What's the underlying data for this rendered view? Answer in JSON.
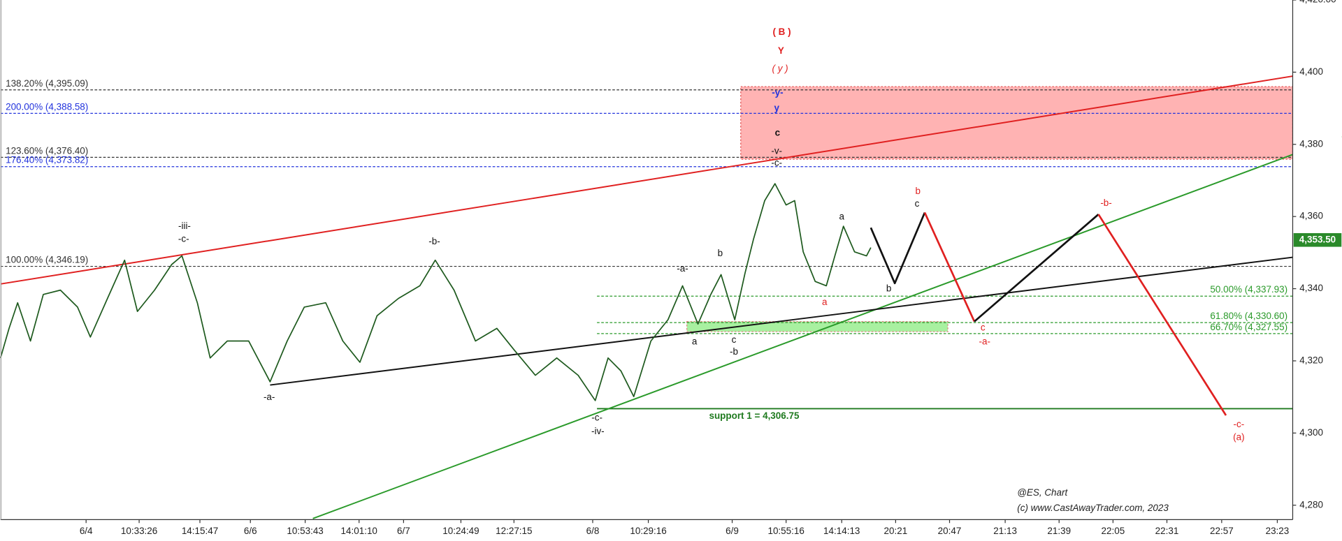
{
  "chart_data": {
    "type": "line",
    "series": [
      {
        "name": "@ES",
        "color": "#1e5a1e",
        "x": [
          0,
          10,
          20,
          35,
          50,
          70,
          90,
          105,
          125,
          145,
          160,
          180,
          200,
          212,
          230,
          245,
          265,
          290,
          315,
          335,
          355,
          380,
          400,
          420,
          440,
          465,
          490,
          508,
          530,
          555,
          580,
          600,
          625,
          650,
          675,
          695,
          710,
          725,
          740,
          760,
          780,
          797,
          815,
          830,
          842,
          858,
          870,
          880,
          893,
          905,
          918,
          928,
          938,
          952,
          965,
          975,
          985,
          998,
          1012,
          1017
        ],
        "values": [
          4320.8,
          4329.0,
          4336.1,
          4325.5,
          4338.4,
          4339.6,
          4334.9,
          4326.6,
          4337.3,
          4347.9,
          4333.7,
          4339.6,
          4346.7,
          4349.1,
          4336.1,
          4320.8,
          4325.5,
          4325.5,
          4314.2,
          4325.5,
          4334.9,
          4336.1,
          4325.5,
          4319.6,
          4332.5,
          4337.3,
          4340.8,
          4347.9,
          4339.6,
          4325.5,
          4329.0,
          4323.1,
          4316.0,
          4320.8,
          4316.0,
          4309.0,
          4320.8,
          4317.2,
          4310.1,
          4325.5,
          4331.4,
          4340.8,
          4330.2,
          4338.4,
          4343.9,
          4331.4,
          4344.3,
          4353.8,
          4364.4,
          4369.1,
          4363.2,
          4364.4,
          4350.2,
          4342.0,
          4340.8,
          4349.1,
          4357.3,
          4350.2,
          4349.1,
          4351.4
        ]
      }
    ],
    "xlim": [
      0,
      1510
    ],
    "xticks": [
      {
        "value": 100,
        "label": "6/4"
      },
      {
        "value": 162,
        "label": "10:33:26"
      },
      {
        "value": 233,
        "label": "14:15:47"
      },
      {
        "value": 292,
        "label": "6/6"
      },
      {
        "value": 356,
        "label": "10:53:43"
      },
      {
        "value": 419,
        "label": "14:01:10"
      },
      {
        "value": 471,
        "label": "6/7"
      },
      {
        "value": 538,
        "label": "10:24:49"
      },
      {
        "value": 600,
        "label": "12:27:15"
      },
      {
        "value": 692,
        "label": "6/8"
      },
      {
        "value": 757,
        "label": "10:29:16"
      },
      {
        "value": 855,
        "label": "6/9"
      },
      {
        "value": 918,
        "label": "10:55:16"
      },
      {
        "value": 983,
        "label": "14:14:13"
      },
      {
        "value": 1046,
        "label": "20:21"
      },
      {
        "value": 1109,
        "label": "20:47"
      },
      {
        "value": 1174,
        "label": "21:13"
      },
      {
        "value": 1237,
        "label": "21:39"
      },
      {
        "value": 1300,
        "label": "22:05"
      },
      {
        "value": 1363,
        "label": "22:31"
      },
      {
        "value": 1427,
        "label": "22:57"
      },
      {
        "value": 1492,
        "label": "23:23"
      }
    ],
    "ylim": [
      4276,
      4420
    ],
    "yticks": [
      {
        "value": 4280,
        "label": "4,280"
      },
      {
        "value": 4300,
        "label": "4,300"
      },
      {
        "value": 4320,
        "label": "4,320"
      },
      {
        "value": 4340,
        "label": "4,340"
      },
      {
        "value": 4360,
        "label": "4,360"
      },
      {
        "value": 4380,
        "label": "4,380"
      },
      {
        "value": 4400,
        "label": "4,400"
      },
      {
        "value": 4420,
        "label": "4,420.00"
      }
    ],
    "last_price": {
      "value": 4353.5,
      "label": "4,353.50",
      "color": "#2a8a2a"
    },
    "zones": [
      {
        "range": [
          4375.9,
          4396.0
        ],
        "xrange": [
          865,
          1510
        ],
        "color": "#ffb3b3",
        "border": "#e05050"
      },
      {
        "range": [
          4328.1,
          4330.9
        ],
        "xrange": [
          802,
          1107
        ],
        "color": "#a8f0a0",
        "border": "#e08080"
      }
    ],
    "levels": [
      {
        "value": 4395.09,
        "label": "138.20% (4,395.09)",
        "color": "#333333",
        "xstart": 0,
        "label_side": "left"
      },
      {
        "value": 4388.58,
        "label": "200.00% (4,388.58)",
        "color": "#2233dd",
        "xstart": 0,
        "label_side": "left"
      },
      {
        "value": 4376.4,
        "label": "123.60% (4,376.40)",
        "color": "#333333",
        "xstart": 0,
        "label_side": "left"
      },
      {
        "value": 4373.82,
        "label": "176.40% (4,373.82)",
        "color": "#2233dd",
        "xstart": 0,
        "label_side": "left"
      },
      {
        "value": 4346.19,
        "label": "100.00% (4,346.19)",
        "color": "#333333",
        "xstart": 0,
        "label_side": "left"
      },
      {
        "value": 4337.93,
        "label": "50.00% (4,337.93)",
        "color": "#2a9a2a",
        "xstart": 697,
        "label_side": "right"
      },
      {
        "value": 4330.6,
        "label": "61.80% (4,330.60)",
        "color": "#2a9a2a",
        "xstart": 697,
        "label_side": "right"
      },
      {
        "value": 4327.55,
        "label": "66.70% (4,327.55)",
        "color": "#2a9a2a",
        "xstart": 697,
        "label_side": "right"
      }
    ],
    "support": {
      "value": 4306.75,
      "label": "support 1 = 4,306.75",
      "xrange": [
        697,
        1510
      ],
      "color": "#1f7a1f"
    },
    "trendlines": [
      {
        "color": "#e02020",
        "x": [
          0,
          1510
        ],
        "values": [
          4341.3,
          4398.9
        ]
      },
      {
        "color": "#2a9a2a",
        "x": [
          365,
          1567
        ],
        "values": [
          4276.3,
          4382.2
        ]
      },
      {
        "color": "#111111",
        "x": [
          315,
          1510
        ],
        "values": [
          4313.3,
          4348.7
        ]
      }
    ],
    "projections": [
      {
        "color": "#111111",
        "x": [
          1017,
          1045,
          1080
        ],
        "values": [
          4356.9,
          4341.5,
          4361.1
        ]
      },
      {
        "color": "#e02020",
        "x": [
          1080,
          1138
        ],
        "values": [
          4361.1,
          4330.9
        ]
      },
      {
        "color": "#111111",
        "x": [
          1138,
          1283
        ],
        "values": [
          4330.9,
          4360.6
        ]
      },
      {
        "color": "#e02020",
        "x": [
          1283,
          1432
        ],
        "values": [
          4360.6,
          4304.9
        ]
      }
    ],
    "annotations": [
      {
        "text": "( B )",
        "color": "#e02020"
      },
      {
        "text": "Y",
        "color": "#e02020"
      },
      {
        "text": "( y )",
        "color": "#e02020"
      },
      {
        "text": "-y-",
        "color": "#2233dd"
      },
      {
        "text": "y",
        "color": "#2233dd"
      },
      {
        "text": "c",
        "color": "#111111"
      },
      {
        "text": "-v-",
        "color": "#111111"
      },
      {
        "text": "-c-",
        "color": "#111111"
      },
      {
        "text": "-iii-",
        "color": "#111111"
      },
      {
        "text": "-c-",
        "color": "#111111"
      },
      {
        "text": "-a-",
        "color": "#111111"
      },
      {
        "text": "-b-",
        "color": "#111111"
      },
      {
        "text": "-a-",
        "color": "#111111"
      },
      {
        "text": "b",
        "color": "#111111"
      },
      {
        "text": "a",
        "color": "#111111"
      },
      {
        "text": "c",
        "color": "#111111"
      },
      {
        "text": "-b",
        "color": "#111111"
      },
      {
        "text": "-c-",
        "color": "#111111"
      },
      {
        "text": "-iv-",
        "color": "#111111"
      },
      {
        "text": "a",
        "color": "#e02020"
      },
      {
        "text": "a",
        "color": "#111111"
      },
      {
        "text": "b",
        "color": "#e02020"
      },
      {
        "text": "c",
        "color": "#111111"
      },
      {
        "text": "b",
        "color": "#111111"
      },
      {
        "text": "c",
        "color": "#e02020"
      },
      {
        "text": "-a-",
        "color": "#e02020"
      },
      {
        "text": "-b-",
        "color": "#e02020"
      },
      {
        "text": "-c-",
        "color": "#e02020"
      },
      {
        "text": "(a)",
        "color": "#e02020"
      }
    ],
    "watermark": [
      "@ES, Chart",
      "(c) www.CastAwayTrader.com, 2023"
    ]
  }
}
